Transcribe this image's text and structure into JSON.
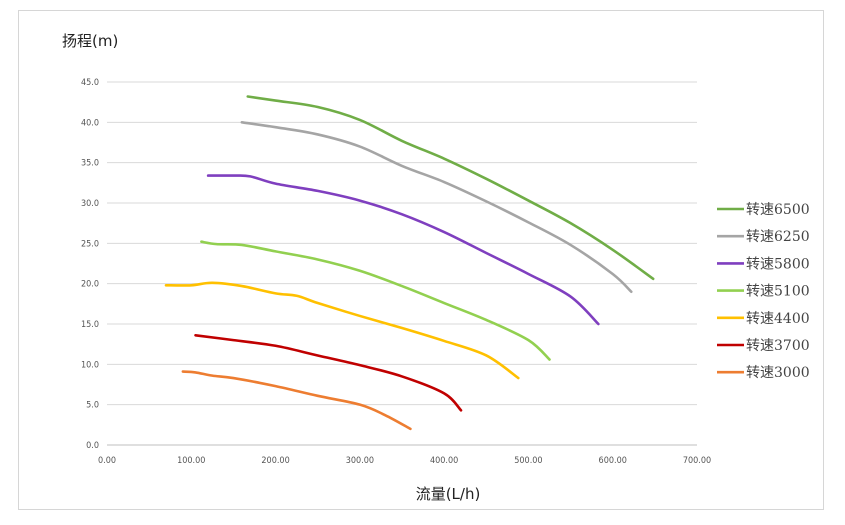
{
  "chart_data": {
    "type": "line",
    "ylabel": "扬程(m)",
    "xlabel": "流量(L/h)",
    "xlim": [
      0,
      700
    ],
    "ylim": [
      0,
      45
    ],
    "x_ticks": [
      "0.00",
      "100.00",
      "200.00",
      "300.00",
      "400.00",
      "500.00",
      "600.00",
      "700.00"
    ],
    "y_ticks": [
      "0.0",
      "5.0",
      "10.0",
      "15.0",
      "20.0",
      "25.0",
      "30.0",
      "35.0",
      "40.0",
      "45.0"
    ],
    "grid": "horizontal",
    "legend_position": "right",
    "series": [
      {
        "name": "转速6500",
        "color": "#70ad47",
        "points": [
          [
            167,
            43.2
          ],
          [
            200,
            42.7
          ],
          [
            250,
            41.9
          ],
          [
            300,
            40.3
          ],
          [
            350,
            37.7
          ],
          [
            400,
            35.5
          ],
          [
            450,
            33.0
          ],
          [
            500,
            30.3
          ],
          [
            550,
            27.5
          ],
          [
            600,
            24.2
          ],
          [
            648,
            20.6
          ]
        ]
      },
      {
        "name": "转速6250",
        "color": "#a5a5a5",
        "points": [
          [
            160,
            40.0
          ],
          [
            200,
            39.4
          ],
          [
            250,
            38.5
          ],
          [
            300,
            37.0
          ],
          [
            350,
            34.6
          ],
          [
            400,
            32.6
          ],
          [
            450,
            30.2
          ],
          [
            500,
            27.6
          ],
          [
            550,
            24.8
          ],
          [
            600,
            21.2
          ],
          [
            622,
            19.0
          ]
        ]
      },
      {
        "name": "转速5800",
        "color": "#7f3fbf",
        "points": [
          [
            120,
            33.4
          ],
          [
            150,
            33.4
          ],
          [
            170,
            33.3
          ],
          [
            200,
            32.4
          ],
          [
            250,
            31.5
          ],
          [
            300,
            30.3
          ],
          [
            350,
            28.6
          ],
          [
            400,
            26.4
          ],
          [
            450,
            23.8
          ],
          [
            500,
            21.2
          ],
          [
            550,
            18.4
          ],
          [
            583,
            15.0
          ]
        ]
      },
      {
        "name": "转速5100",
        "color": "#92d050",
        "points": [
          [
            112,
            25.2
          ],
          [
            130,
            24.9
          ],
          [
            160,
            24.8
          ],
          [
            200,
            24.0
          ],
          [
            250,
            23.0
          ],
          [
            300,
            21.6
          ],
          [
            350,
            19.7
          ],
          [
            400,
            17.6
          ],
          [
            450,
            15.5
          ],
          [
            500,
            13.0
          ],
          [
            525,
            10.6
          ]
        ]
      },
      {
        "name": "转速4400",
        "color": "#ffc000",
        "points": [
          [
            70,
            19.8
          ],
          [
            100,
            19.8
          ],
          [
            125,
            20.1
          ],
          [
            160,
            19.7
          ],
          [
            200,
            18.8
          ],
          [
            225,
            18.5
          ],
          [
            250,
            17.6
          ],
          [
            300,
            16.0
          ],
          [
            350,
            14.5
          ],
          [
            400,
            12.9
          ],
          [
            450,
            11.1
          ],
          [
            488,
            8.3
          ]
        ]
      },
      {
        "name": "转速3700",
        "color": "#c00000",
        "points": [
          [
            105,
            13.6
          ],
          [
            150,
            13.0
          ],
          [
            200,
            12.3
          ],
          [
            250,
            11.1
          ],
          [
            300,
            9.9
          ],
          [
            350,
            8.5
          ],
          [
            400,
            6.4
          ],
          [
            420,
            4.3
          ]
        ]
      },
      {
        "name": "转速3000",
        "color": "#ed7d31",
        "points": [
          [
            90,
            9.1
          ],
          [
            105,
            9.0
          ],
          [
            125,
            8.6
          ],
          [
            150,
            8.3
          ],
          [
            200,
            7.3
          ],
          [
            250,
            6.1
          ],
          [
            300,
            5.0
          ],
          [
            330,
            3.7
          ],
          [
            360,
            2.0
          ]
        ]
      }
    ]
  }
}
